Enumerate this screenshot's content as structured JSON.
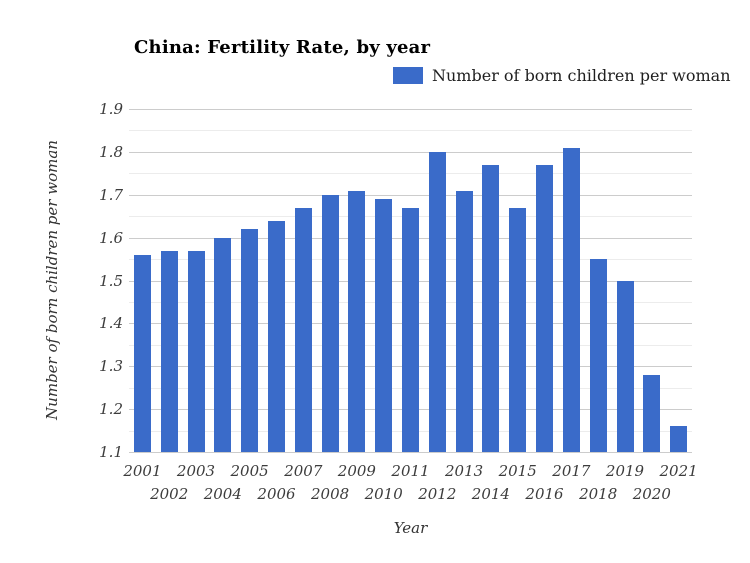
{
  "title": "China: Fertility Rate, by year",
  "legend": {
    "label": "Number of born children per woman"
  },
  "axes": {
    "x_title": "Year",
    "y_title": "Number of born children per woman"
  },
  "colors": {
    "bar": "#3a6bc9",
    "grid_major": "#cccccc",
    "grid_minor": "#ececec",
    "tick_text": "#3c3c3c",
    "title_text": "#000000"
  },
  "chart_data": {
    "type": "bar",
    "title": "China: Fertility Rate, by year",
    "series_name": "Number of born children per woman",
    "categories": [
      "2001",
      "2002",
      "2003",
      "2004",
      "2005",
      "2006",
      "2007",
      "2008",
      "2009",
      "2010",
      "2011",
      "2012",
      "2013",
      "2014",
      "2015",
      "2016",
      "2017",
      "2018",
      "2019",
      "2020",
      "2021"
    ],
    "values": [
      1.56,
      1.57,
      1.57,
      1.6,
      1.62,
      1.64,
      1.67,
      1.7,
      1.71,
      1.69,
      1.67,
      1.8,
      1.71,
      1.77,
      1.67,
      1.77,
      1.81,
      1.55,
      1.5,
      1.28,
      1.16
    ],
    "xlabel": "Year",
    "ylabel": "Number of born children per woman",
    "ylim": [
      1.1,
      1.9
    ],
    "y_ticks": [
      1.1,
      1.2,
      1.3,
      1.4,
      1.5,
      1.6,
      1.7,
      1.8,
      1.9
    ],
    "y_minor_step": 0.05,
    "grid": true,
    "legend_position": "top-right",
    "x_labels_staggered": true
  }
}
